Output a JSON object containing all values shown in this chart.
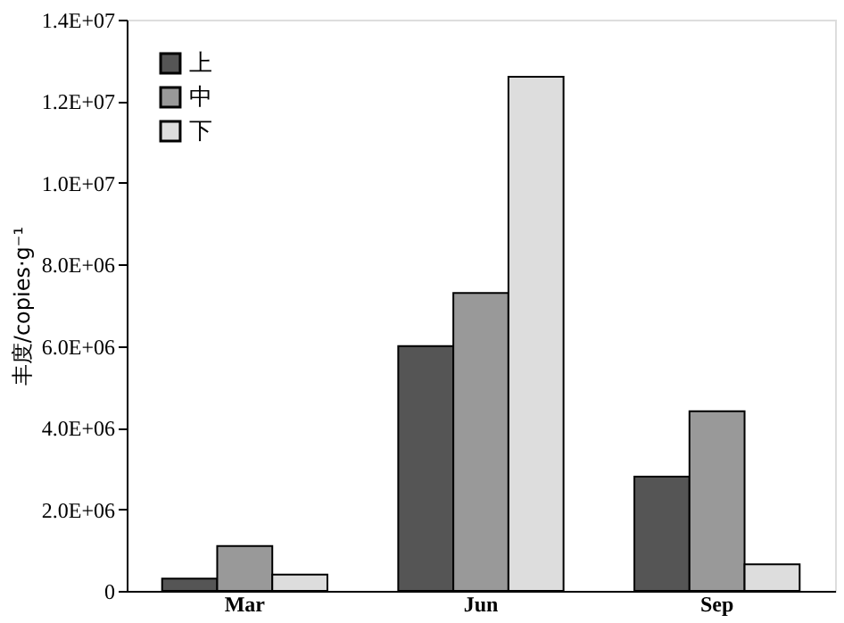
{
  "chart_data": {
    "type": "bar",
    "ylabel": "丰度/copies·g⁻¹",
    "categories": [
      "Mar",
      "Jun",
      "Sep"
    ],
    "series": [
      {
        "name": "上",
        "color": "#555555",
        "values": [
          300000,
          6000000,
          2800000
        ]
      },
      {
        "name": "中",
        "color": "#999999",
        "values": [
          1100000,
          7300000,
          4400000
        ]
      },
      {
        "name": "下",
        "color": "#dddddd",
        "values": [
          400000,
          12600000,
          650000
        ]
      }
    ],
    "ylim": [
      0,
      14000000
    ],
    "yticks": [
      0,
      {
        "value": 2000000,
        "label": "2.0E+06"
      },
      {
        "value": 4000000,
        "label": "4.0E+06"
      },
      {
        "value": 6000000,
        "label": "6.0E+06"
      },
      {
        "value": 8000000,
        "label": "8.0E+06"
      },
      {
        "value": 10000000,
        "label": "1.0E+07"
      },
      {
        "value": 12000000,
        "label": "1.2E+07"
      },
      {
        "value": 14000000,
        "label": "1.4E+07"
      }
    ],
    "grid": false,
    "legend": "top left"
  }
}
